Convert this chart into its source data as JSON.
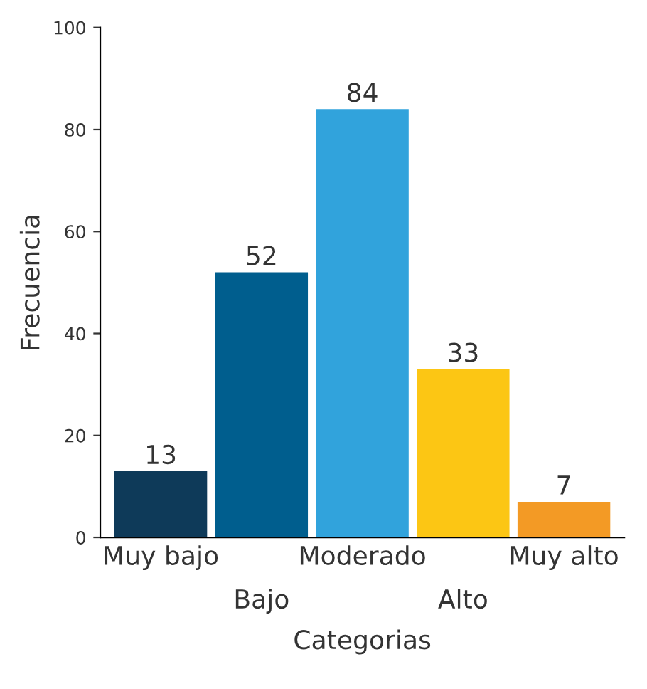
{
  "chart_data": {
    "type": "bar",
    "xlabel": "Categorias",
    "ylabel": "Frecuencia",
    "categories": [
      "Muy bajo",
      "Bajo",
      "Moderado",
      "Alto",
      "Muy alto"
    ],
    "values": [
      13,
      52,
      84,
      33,
      7
    ],
    "colors": [
      "#0e3a59",
      "#005e8e",
      "#31a3dc",
      "#fcc614",
      "#f39a25"
    ],
    "ylim": [
      0,
      100
    ],
    "yticks": [
      0,
      20,
      40,
      60,
      80,
      100
    ],
    "data_labels": true,
    "grid": false,
    "legend": false
  }
}
